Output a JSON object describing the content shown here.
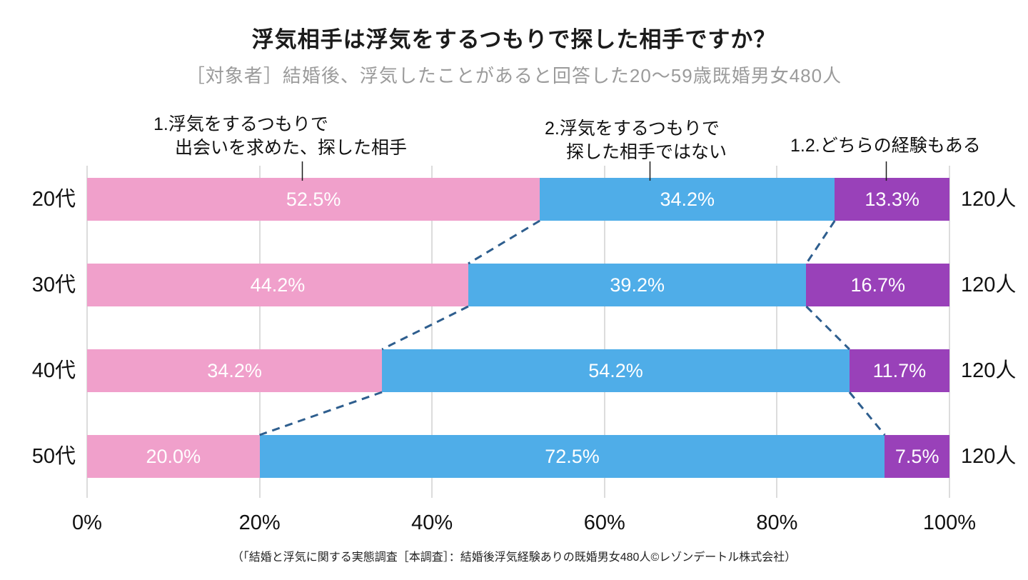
{
  "title": "浮気相手は浮気をするつもりで探した相手ですか？",
  "subtitle": "［対象者］結婚後、浮気したことがあると回答した20〜59歳既婚男女480人",
  "footer": "（「結婚と浮気に関する実態調査［本調査］：結婚後浮気経験ありの既婚男女480人©レゾンデートル株式会社）",
  "colors": {
    "pink": "#F0A0CB",
    "blue": "#4FADE8",
    "purple": "#9941B9",
    "dashed": "#2E5E8E",
    "grid": "#DCDCDC",
    "value_text": "#FFFFFF",
    "subtitle_text": "#9B9B9B"
  },
  "legend": {
    "item1_line1": "1.浮気をするつもりで",
    "item1_line2": "出会いを求めた、探した相手",
    "item2_line1": "2.浮気をするつもりで",
    "item2_line2": "探した相手ではない",
    "item3_line1": "1.2.どちらの経験もある"
  },
  "chart_data": {
    "type": "bar",
    "orientation": "horizontal",
    "stacked": true,
    "categories": [
      "20代",
      "30代",
      "40代",
      "50代"
    ],
    "series": [
      {
        "name": "1.浮気をするつもりで出会いを求めた、探した相手",
        "color": "#F0A0CB",
        "values": [
          52.5,
          44.2,
          34.2,
          20.0
        ]
      },
      {
        "name": "2.浮気をするつもりで探した相手ではない",
        "color": "#4FADE8",
        "values": [
          34.2,
          39.2,
          54.2,
          72.5
        ]
      },
      {
        "name": "1.2.どちらの経験もある",
        "color": "#9941B9",
        "values": [
          13.3,
          16.7,
          11.7,
          7.5
        ]
      }
    ],
    "totals": [
      "120人",
      "120人",
      "120人",
      "120人"
    ],
    "x_ticks": [
      "0%",
      "20%",
      "40%",
      "60%",
      "80%",
      "100%"
    ],
    "xlim": [
      0,
      100
    ],
    "grid": true,
    "value_suffix": "%",
    "legend_position": "top"
  }
}
